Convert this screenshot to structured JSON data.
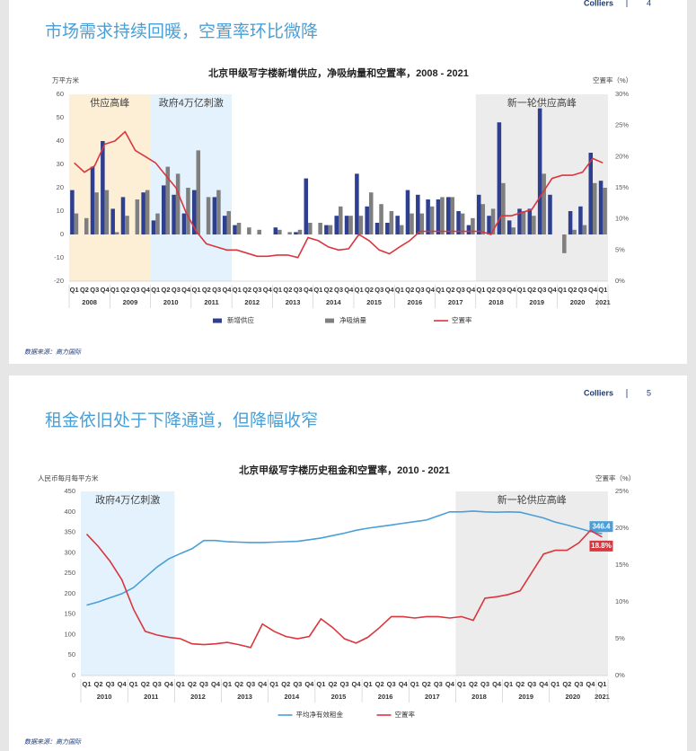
{
  "slides": [
    {
      "brand": "Colliers",
      "page": "4",
      "title": "市场需求持续回暖，空置率环比微降",
      "source": "数据来源：高力国际"
    },
    {
      "brand": "Colliers",
      "page": "5",
      "title": "租金依旧处于下降通道，但降幅收窄",
      "source": "数据来源：高力国际"
    }
  ],
  "chart_data": [
    {
      "type": "bar",
      "title": "北京甲级写字楼新增供应，净吸纳量和空置率，2008 - 2021",
      "y_label": "万平方米",
      "y2_label": "空置率（%）",
      "categories": [
        "Q1",
        "Q2",
        "Q3",
        "Q4",
        "Q1",
        "Q2",
        "Q3",
        "Q4",
        "Q1",
        "Q2",
        "Q3",
        "Q4",
        "Q1",
        "Q2",
        "Q3",
        "Q4",
        "Q1",
        "Q2",
        "Q3",
        "Q4",
        "Q1",
        "Q2",
        "Q3",
        "Q4",
        "Q1",
        "Q2",
        "Q3",
        "Q4",
        "Q1",
        "Q2",
        "Q3",
        "Q4",
        "Q1",
        "Q2",
        "Q3",
        "Q4",
        "Q1",
        "Q2",
        "Q3",
        "Q4",
        "Q1",
        "Q2",
        "Q3",
        "Q4",
        "Q1",
        "Q2",
        "Q3",
        "Q4",
        "Q1",
        "Q2",
        "Q3",
        "Q4",
        "Q1"
      ],
      "years": [
        "2008",
        "2009",
        "2010",
        "2011",
        "2012",
        "2013",
        "2014",
        "2015",
        "2016",
        "2017",
        "2018",
        "2019",
        "2020",
        "2021"
      ],
      "annotations": [
        "供应高峰",
        "政府4万亿刺激",
        "新一轮供应高峰"
      ],
      "series": [
        {
          "name": "新增供应",
          "color": "#2e3f8f",
          "values": [
            19,
            0,
            29,
            40,
            11,
            16,
            0,
            18,
            6,
            21,
            17,
            9,
            19,
            0,
            16,
            8,
            4,
            0,
            0,
            0,
            3,
            0,
            1,
            24,
            0,
            4,
            8,
            8,
            26,
            12,
            5,
            5,
            8,
            19,
            17,
            15,
            15,
            16,
            10,
            4,
            17,
            8,
            48,
            6,
            11,
            11,
            54,
            17,
            0,
            10,
            12,
            35,
            23
          ]
        },
        {
          "name": "净吸纳量",
          "color": "#7f7f7f",
          "values": [
            9,
            7,
            18,
            19,
            1,
            8,
            15,
            19,
            9,
            29,
            26,
            20,
            36,
            16,
            19,
            10,
            5,
            3,
            2,
            0,
            2,
            1,
            2,
            5,
            5,
            4,
            12,
            8,
            8,
            18,
            13,
            10,
            4,
            9,
            9,
            12,
            16,
            16,
            9,
            7,
            13,
            11,
            22,
            3,
            10,
            8,
            26,
            0,
            -8,
            2,
            4,
            22,
            20
          ]
        },
        {
          "name": "空置率",
          "color": "#d9363e",
          "type": "line",
          "axis": "y2",
          "values": [
            19,
            17.5,
            18.5,
            22,
            22.5,
            24,
            21,
            20,
            19,
            17,
            15,
            11,
            8,
            6,
            5.5,
            5,
            5,
            4.5,
            4,
            4,
            4.2,
            4.2,
            3.8,
            7,
            6.5,
            5.5,
            5,
            5.2,
            7.5,
            6.5,
            5,
            4.4,
            5.5,
            6.5,
            8,
            8,
            8,
            8,
            8,
            8,
            8,
            7.5,
            10.5,
            10.5,
            11,
            11.5,
            14,
            16.5,
            17,
            17,
            17.5,
            19.7,
            19
          ]
        }
      ],
      "ylim": [
        -20,
        60
      ],
      "yticks": [
        -20,
        -10,
        0,
        10,
        20,
        30,
        40,
        50,
        60
      ],
      "y2lim": [
        0,
        30
      ],
      "y2ticks": [
        {
          "value": 0,
          "label": "0%"
        },
        {
          "value": 5,
          "label": "5%"
        },
        {
          "value": 10,
          "label": "10%"
        },
        {
          "value": 15,
          "label": "15%"
        },
        {
          "value": 20,
          "label": "20%"
        },
        {
          "value": 25,
          "label": "25%"
        },
        {
          "value": 30,
          "label": "30%"
        }
      ],
      "grid": false,
      "legend": "bottom"
    },
    {
      "type": "line",
      "title": "北京甲级写字楼历史租金和空置率，2010 - 2021",
      "y_label": "人民币每月每平方米",
      "y2_label": "空置率（%）",
      "categories": [
        "Q1",
        "Q2",
        "Q3",
        "Q4",
        "Q1",
        "Q2",
        "Q3",
        "Q4",
        "Q1",
        "Q2",
        "Q3",
        "Q4",
        "Q1",
        "Q2",
        "Q3",
        "Q4",
        "Q1",
        "Q2",
        "Q3",
        "Q4",
        "Q1",
        "Q2",
        "Q3",
        "Q4",
        "Q1",
        "Q2",
        "Q3",
        "Q4",
        "Q1",
        "Q2",
        "Q3",
        "Q4",
        "Q1",
        "Q2",
        "Q3",
        "Q4",
        "Q1",
        "Q2",
        "Q3",
        "Q4",
        "Q1",
        "Q2",
        "Q3",
        "Q4",
        "Q1"
      ],
      "years": [
        "2010",
        "2011",
        "2012",
        "2013",
        "2014",
        "2015",
        "2016",
        "2017",
        "2018",
        "2019",
        "2020",
        "2021"
      ],
      "annotations": [
        "政府4万亿刺激",
        "新一轮供应高峰"
      ],
      "series": [
        {
          "name": "平均净有效租金",
          "color": "#4a9fd8",
          "values": [
            172,
            180,
            190,
            200,
            215,
            240,
            265,
            285,
            298,
            310,
            330,
            330,
            327,
            326,
            325,
            325,
            326,
            327,
            328,
            332,
            336,
            342,
            348,
            355,
            360,
            364,
            368,
            372,
            376,
            380,
            390,
            400,
            400,
            402,
            400,
            399,
            400,
            399,
            392,
            385,
            375,
            368,
            360,
            352,
            346.4
          ],
          "value_labels": [
            null,
            null,
            null,
            null,
            null,
            null,
            null,
            null,
            null,
            null,
            null,
            null,
            null,
            null,
            null,
            null,
            null,
            null,
            null,
            null,
            null,
            null,
            null,
            null,
            null,
            null,
            null,
            null,
            null,
            null,
            null,
            null,
            null,
            null,
            null,
            null,
            null,
            null,
            null,
            null,
            null,
            null,
            null,
            null,
            "346.4"
          ]
        },
        {
          "name": "空置率",
          "color": "#d9363e",
          "axis": "y2",
          "values": [
            19.2,
            17.5,
            15.5,
            13,
            9,
            6,
            5.5,
            5.2,
            5,
            4.3,
            4.2,
            4.3,
            4.5,
            4.2,
            3.8,
            7,
            6,
            5.3,
            5,
            5.3,
            7.7,
            6.5,
            5,
            4.4,
            5.2,
            6.5,
            8,
            8,
            7.8,
            8,
            8,
            7.8,
            8,
            7.5,
            10.5,
            10.7,
            11,
            11.5,
            14,
            16.5,
            17,
            17,
            18,
            19.7,
            18.8
          ],
          "value_labels": [
            null,
            null,
            null,
            null,
            null,
            null,
            null,
            null,
            null,
            null,
            null,
            null,
            null,
            null,
            null,
            null,
            null,
            null,
            null,
            null,
            null,
            null,
            null,
            null,
            null,
            null,
            null,
            null,
            null,
            null,
            null,
            null,
            null,
            null,
            null,
            null,
            null,
            null,
            null,
            null,
            null,
            null,
            null,
            null,
            "18.8%"
          ]
        }
      ],
      "ylim": [
        0,
        450
      ],
      "yticks": [
        0,
        50,
        100,
        150,
        200,
        250,
        300,
        350,
        400,
        450
      ],
      "y2lim": [
        0,
        25
      ],
      "y2ticks": [
        {
          "value": 0,
          "label": "0%"
        },
        {
          "value": 5,
          "label": "5%"
        },
        {
          "value": 10,
          "label": "10%"
        },
        {
          "value": 15,
          "label": "15%"
        },
        {
          "value": 20,
          "label": "20%"
        },
        {
          "value": 25,
          "label": "25%"
        }
      ],
      "grid": false,
      "legend": "bottom"
    }
  ]
}
